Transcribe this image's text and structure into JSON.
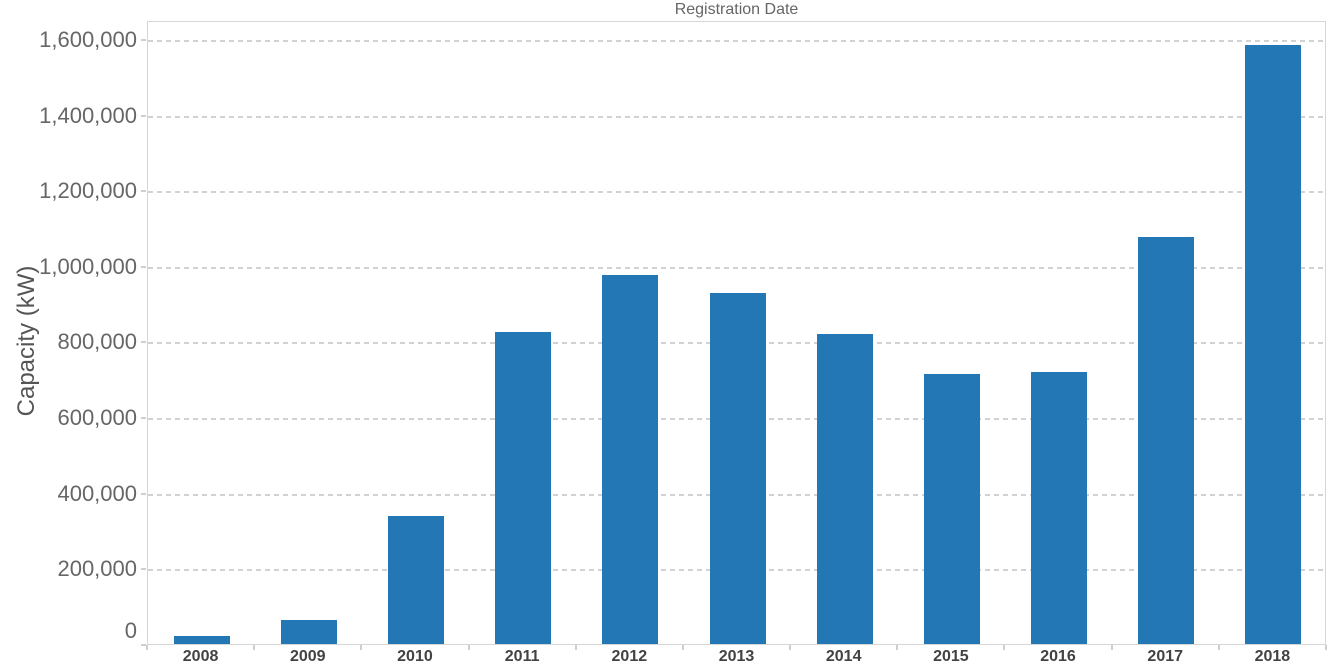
{
  "title": "Registration Date",
  "colors": {
    "bar": "#2277b4",
    "gridline": "#d2d2d2",
    "plot_border": "#d6d6d6",
    "tick_mark": "#cfcfcf",
    "title_text": "#666666",
    "axis_title_text": "#555555",
    "y_tick_label_text": "#666666",
    "x_tick_label_text": "#424242"
  },
  "chart_data": {
    "type": "bar",
    "title": "Registration Date",
    "xlabel": "",
    "ylabel": "Capacity (kW)",
    "categories": [
      "2008",
      "2009",
      "2010",
      "2011",
      "2012",
      "2013",
      "2014",
      "2015",
      "2016",
      "2017",
      "2018"
    ],
    "values": [
      20000,
      64000,
      338000,
      826000,
      976000,
      928000,
      819000,
      714000,
      719000,
      1076000,
      1583000
    ],
    "ylim": [
      0,
      1650000
    ],
    "yticks": [
      0,
      200000,
      400000,
      600000,
      800000,
      1000000,
      1200000,
      1400000,
      1600000
    ],
    "ytick_labels": [
      "0",
      "200,000",
      "400,000",
      "600,000",
      "800,000",
      "1,000,000",
      "1,200,000",
      "1,400,000",
      "1,600,000"
    ],
    "grid": "horizontal-dashed",
    "legend": "none",
    "bar_color": "#2277b4"
  }
}
